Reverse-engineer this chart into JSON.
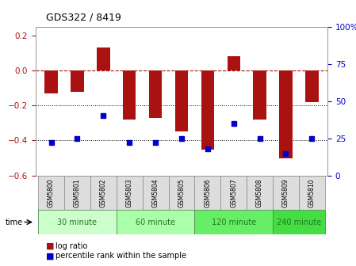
{
  "title": "GDS322 / 8419",
  "samples": [
    "GSM5800",
    "GSM5801",
    "GSM5802",
    "GSM5803",
    "GSM5804",
    "GSM5805",
    "GSM5806",
    "GSM5807",
    "GSM5808",
    "GSM5809",
    "GSM5810"
  ],
  "log_ratio": [
    -0.13,
    -0.12,
    0.13,
    -0.28,
    -0.27,
    -0.35,
    -0.45,
    0.08,
    -0.28,
    -0.5,
    -0.18
  ],
  "percentile_rank": [
    22,
    25,
    40,
    22,
    22,
    25,
    18,
    35,
    25,
    15,
    25
  ],
  "groups": [
    {
      "label": "30 minute",
      "start": 0,
      "end": 2,
      "color": "#ccffcc"
    },
    {
      "label": "60 minute",
      "start": 3,
      "end": 5,
      "color": "#aaffaa"
    },
    {
      "label": "120 minute",
      "start": 6,
      "end": 8,
      "color": "#66ee66"
    },
    {
      "label": "240 minute",
      "start": 9,
      "end": 10,
      "color": "#44dd44"
    }
  ],
  "bar_color": "#aa1111",
  "dot_color": "#0000cc",
  "left_ylim": [
    -0.6,
    0.25
  ],
  "right_ylim": [
    0,
    100
  ],
  "right_yticks": [
    0,
    25,
    50,
    75,
    100
  ],
  "left_yticks": [
    -0.6,
    -0.4,
    -0.2,
    0.0,
    0.2
  ],
  "background_color": "#ffffff",
  "plot_bg_color": "#ffffff"
}
